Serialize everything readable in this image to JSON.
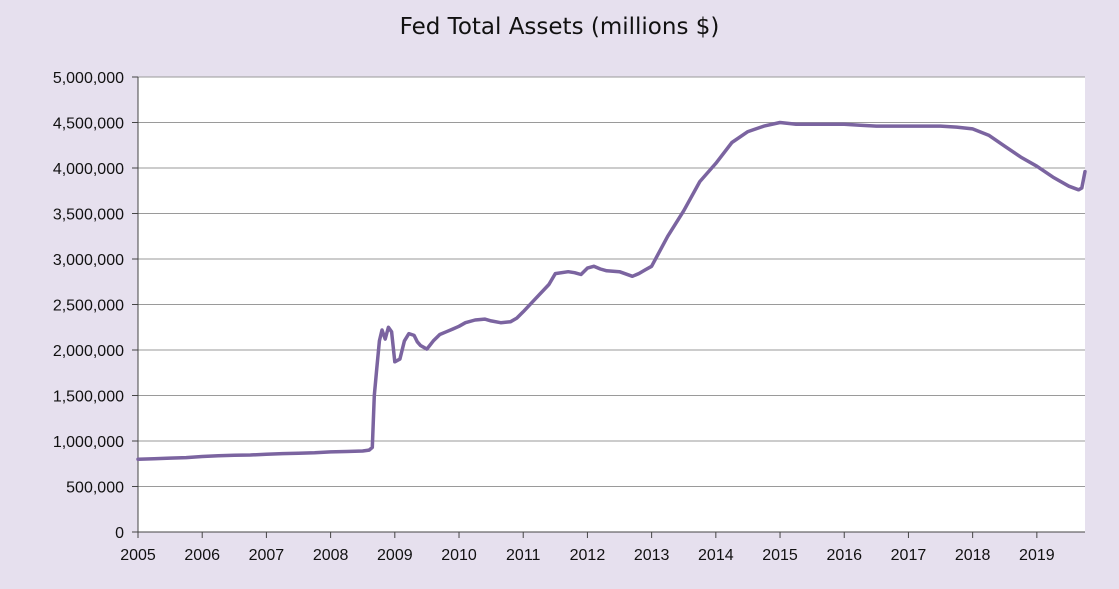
{
  "chart_data": {
    "type": "line",
    "title": "Fed Total Assets (millions $)",
    "xlabel": "",
    "ylabel": "",
    "x_range": [
      2005.0,
      2019.75
    ],
    "ylim": [
      0,
      5000000
    ],
    "y_ticks": [
      0,
      500000,
      1000000,
      1500000,
      2000000,
      2500000,
      3000000,
      3500000,
      4000000,
      4500000,
      5000000
    ],
    "y_tick_labels": [
      "0",
      "500,000",
      "1,000,000",
      "1,500,000",
      "2,000,000",
      "2,500,000",
      "3,000,000",
      "3,500,000",
      "4,000,000",
      "4,500,000",
      "5,000,000"
    ],
    "x_ticks": [
      2005,
      2006,
      2007,
      2008,
      2009,
      2010,
      2011,
      2012,
      2013,
      2014,
      2015,
      2016,
      2017,
      2018,
      2019
    ],
    "x_tick_labels": [
      "2005",
      "2006",
      "2007",
      "2008",
      "2009",
      "2010",
      "2011",
      "2012",
      "2013",
      "2014",
      "2015",
      "2016",
      "2017",
      "2018",
      "2019"
    ],
    "grid": "horizontal",
    "legend": "none",
    "colors": {
      "line": "#7b64a0",
      "grid": "#9a9a9a",
      "plot_bg": "#ffffff",
      "page_bg": "#e6e0ee"
    },
    "series": [
      {
        "x": [
          2005.0,
          2005.25,
          2005.5,
          2005.75,
          2006.0,
          2006.25,
          2006.5,
          2006.75,
          2007.0,
          2007.25,
          2007.5,
          2007.75,
          2008.0,
          2008.25,
          2008.5,
          2008.6,
          2008.65,
          2008.68,
          2008.72,
          2008.76,
          2008.8,
          2008.85,
          2008.9,
          2008.95,
          2009.0,
          2009.08,
          2009.15,
          2009.22,
          2009.3,
          2009.35,
          2009.4,
          2009.45,
          2009.5,
          2009.6,
          2009.7,
          2009.8,
          2009.9,
          2010.0,
          2010.1,
          2010.25,
          2010.4,
          2010.5,
          2010.65,
          2010.8,
          2010.9,
          2011.0,
          2011.2,
          2011.4,
          2011.5,
          2011.7,
          2011.8,
          2011.9,
          2012.0,
          2012.1,
          2012.2,
          2012.3,
          2012.5,
          2012.7,
          2012.8,
          2012.9,
          2013.0,
          2013.25,
          2013.5,
          2013.75,
          2014.0,
          2014.25,
          2014.5,
          2014.75,
          2015.0,
          2015.25,
          2015.5,
          2015.75,
          2016.0,
          2016.25,
          2016.5,
          2016.75,
          2017.0,
          2017.25,
          2017.5,
          2017.75,
          2018.0,
          2018.25,
          2018.5,
          2018.75,
          2019.0,
          2019.25,
          2019.5,
          2019.65,
          2019.7,
          2019.75
        ],
        "values": [
          800000,
          805000,
          812000,
          818000,
          830000,
          838000,
          843000,
          846000,
          855000,
          862000,
          866000,
          870000,
          880000,
          885000,
          890000,
          900000,
          930000,
          1500000,
          1800000,
          2100000,
          2220000,
          2120000,
          2250000,
          2200000,
          1870000,
          1900000,
          2100000,
          2180000,
          2160000,
          2090000,
          2050000,
          2030000,
          2010000,
          2100000,
          2170000,
          2200000,
          2230000,
          2260000,
          2300000,
          2330000,
          2340000,
          2320000,
          2300000,
          2310000,
          2350000,
          2420000,
          2570000,
          2720000,
          2840000,
          2860000,
          2850000,
          2830000,
          2900000,
          2920000,
          2890000,
          2870000,
          2860000,
          2810000,
          2840000,
          2880000,
          2920000,
          3250000,
          3530000,
          3850000,
          4050000,
          4280000,
          4400000,
          4460000,
          4500000,
          4480000,
          4480000,
          4480000,
          4480000,
          4470000,
          4460000,
          4460000,
          4460000,
          4460000,
          4460000,
          4450000,
          4430000,
          4360000,
          4240000,
          4120000,
          4020000,
          3900000,
          3800000,
          3760000,
          3780000,
          3960000
        ]
      }
    ]
  }
}
